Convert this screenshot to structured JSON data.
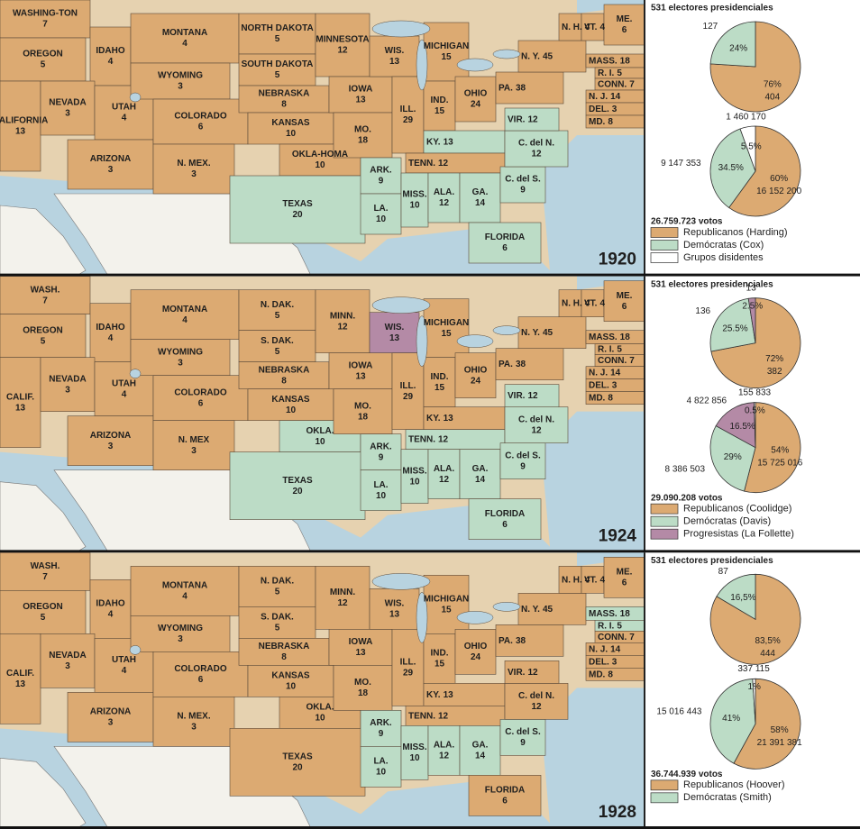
{
  "panels": [
    {
      "year": 1920,
      "electors_title": "531 electores presidenciales",
      "electoral_pie": [
        {
          "percent": 76,
          "percent_label": "76%",
          "count": 404,
          "color": "#dcaa72"
        },
        {
          "percent": 24,
          "percent_label": "24%",
          "count": 127,
          "color": "#bcdcc6"
        }
      ],
      "popular_pie": [
        {
          "percent": 60,
          "percent_label": "60%",
          "count": "16 152 200",
          "color": "#dcaa72"
        },
        {
          "percent": 34.5,
          "percent_label": "34.5%",
          "count": "9 147 353",
          "color": "#bcdcc6"
        },
        {
          "percent": 5.5,
          "percent_label": "5.5%",
          "count": "1 460 170",
          "color": "#ffffff"
        }
      ],
      "total_votes": "26.759.723 votos",
      "legend": [
        {
          "label": "Republicanos (Harding)",
          "color": "#dcaa72"
        },
        {
          "label": "Demócratas (Cox)",
          "color": "#bcdcc6"
        },
        {
          "label": "Grupos disidentes",
          "color": "#ffffff"
        }
      ],
      "states": [
        [
          "WASHING-TON",
          7,
          "#dcaa72"
        ],
        [
          "OREGON",
          5,
          "#dcaa72"
        ],
        [
          "CALIFORNIA",
          13,
          "#dcaa72"
        ],
        [
          "IDAHO",
          4,
          "#dcaa72"
        ],
        [
          "NEVADA",
          3,
          "#dcaa72"
        ],
        [
          "UTAH",
          4,
          "#dcaa72"
        ],
        [
          "ARIZONA",
          3,
          "#dcaa72"
        ],
        [
          "MONTANA",
          4,
          "#dcaa72"
        ],
        [
          "WYOMING",
          3,
          "#dcaa72"
        ],
        [
          "COLORADO",
          6,
          "#dcaa72"
        ],
        [
          "N. MEX.",
          3,
          "#dcaa72"
        ],
        [
          "NORTH DAKOTA",
          5,
          "#dcaa72"
        ],
        [
          "SOUTH DAKOTA",
          5,
          "#dcaa72"
        ],
        [
          "NEBRASKA",
          8,
          "#dcaa72"
        ],
        [
          "KANSAS",
          10,
          "#dcaa72"
        ],
        [
          "OKLA-HOMA",
          10,
          "#dcaa72"
        ],
        [
          "TEXAS",
          20,
          "#bcdcc6"
        ],
        [
          "MINNESOTA",
          12,
          "#dcaa72"
        ],
        [
          "IOWA",
          13,
          "#dcaa72"
        ],
        [
          "MO.",
          18,
          "#dcaa72"
        ],
        [
          "ARK.",
          9,
          "#bcdcc6"
        ],
        [
          "LA.",
          10,
          "#bcdcc6"
        ],
        [
          "WIS.",
          13,
          "#dcaa72"
        ],
        [
          "ILL.",
          29,
          "#dcaa72"
        ],
        [
          "MICHIGAN",
          15,
          "#dcaa72"
        ],
        [
          "IND.",
          15,
          "#dcaa72"
        ],
        [
          "OHIO",
          24,
          "#dcaa72"
        ],
        [
          "KY.",
          13,
          "#bcdcc6"
        ],
        [
          "TENN.",
          12,
          "#dcaa72"
        ],
        [
          "MISS.",
          10,
          "#bcdcc6"
        ],
        [
          "ALA.",
          12,
          "#bcdcc6"
        ],
        [
          "GA.",
          14,
          "#bcdcc6"
        ],
        [
          "FLORIDA",
          6,
          "#bcdcc6"
        ],
        [
          "C. del S.",
          9,
          "#bcdcc6"
        ],
        [
          "C. del N.",
          12,
          "#bcdcc6"
        ],
        [
          "VIR.",
          12,
          "#bcdcc6"
        ],
        [
          "PA.",
          38,
          "#dcaa72"
        ],
        [
          "N. Y.",
          45,
          "#dcaa72"
        ],
        [
          "N. H.",
          4,
          "#dcaa72"
        ],
        [
          "VT.",
          4,
          "#dcaa72"
        ],
        [
          "ME.",
          6,
          "#dcaa72"
        ],
        [
          "MASS.",
          18,
          "#dcaa72"
        ],
        [
          "R. I.",
          5,
          "#dcaa72"
        ],
        [
          "CONN.",
          7,
          "#dcaa72"
        ],
        [
          "N. J.",
          14,
          "#dcaa72"
        ],
        [
          "DEL.",
          3,
          "#dcaa72"
        ],
        [
          "MD.",
          8,
          "#dcaa72"
        ]
      ]
    },
    {
      "year": 1924,
      "electors_title": "531 electores presidenciales",
      "electoral_pie": [
        {
          "percent": 72,
          "percent_label": "72%",
          "count": 382,
          "color": "#dcaa72"
        },
        {
          "percent": 25.5,
          "percent_label": "25.5%",
          "count": 136,
          "color": "#bcdcc6"
        },
        {
          "percent": 2.5,
          "percent_label": "2.5%",
          "count": 13,
          "color": "#b48aa6"
        }
      ],
      "popular_pie": [
        {
          "percent": 54,
          "percent_label": "54%",
          "count": "15 725 016",
          "color": "#dcaa72"
        },
        {
          "percent": 29,
          "percent_label": "29%",
          "count": "8 386 503",
          "color": "#bcdcc6"
        },
        {
          "percent": 16.5,
          "percent_label": "16.5%",
          "count": "4 822 856",
          "color": "#b48aa6"
        },
        {
          "percent": 0.5,
          "percent_label": "0.5%",
          "count": "155 833",
          "color": "#ffffff"
        }
      ],
      "total_votes": "29.090.208 votos",
      "legend": [
        {
          "label": "Republicanos (Coolidge)",
          "color": "#dcaa72"
        },
        {
          "label": "Demócratas (Davis)",
          "color": "#bcdcc6"
        },
        {
          "label": "Progresistas (La Follette)",
          "color": "#b48aa6"
        }
      ],
      "states": [
        [
          "WASH.",
          7,
          "#dcaa72"
        ],
        [
          "OREGON",
          5,
          "#dcaa72"
        ],
        [
          "CALIF.",
          13,
          "#dcaa72"
        ],
        [
          "IDAHO",
          4,
          "#dcaa72"
        ],
        [
          "NEVADA",
          3,
          "#dcaa72"
        ],
        [
          "UTAH",
          4,
          "#dcaa72"
        ],
        [
          "ARIZONA",
          3,
          "#dcaa72"
        ],
        [
          "MONTANA",
          4,
          "#dcaa72"
        ],
        [
          "WYOMING",
          3,
          "#dcaa72"
        ],
        [
          "COLORADO",
          6,
          "#dcaa72"
        ],
        [
          "N. MEX",
          3,
          "#dcaa72"
        ],
        [
          "N. DAK.",
          5,
          "#dcaa72"
        ],
        [
          "S. DAK.",
          5,
          "#dcaa72"
        ],
        [
          "NEBRASKA",
          8,
          "#dcaa72"
        ],
        [
          "KANSAS",
          10,
          "#dcaa72"
        ],
        [
          "OKLA.",
          10,
          "#bcdcc6"
        ],
        [
          "TEXAS",
          20,
          "#bcdcc6"
        ],
        [
          "MINN.",
          12,
          "#dcaa72"
        ],
        [
          "IOWA",
          13,
          "#dcaa72"
        ],
        [
          "MO.",
          18,
          "#dcaa72"
        ],
        [
          "ARK.",
          9,
          "#bcdcc6"
        ],
        [
          "LA.",
          10,
          "#bcdcc6"
        ],
        [
          "WIS.",
          13,
          "#b48aa6"
        ],
        [
          "ILL.",
          29,
          "#dcaa72"
        ],
        [
          "MICHIGAN",
          15,
          "#dcaa72"
        ],
        [
          "IND.",
          15,
          "#dcaa72"
        ],
        [
          "OHIO",
          24,
          "#dcaa72"
        ],
        [
          "KY.",
          13,
          "#dcaa72"
        ],
        [
          "TENN.",
          12,
          "#bcdcc6"
        ],
        [
          "MISS.",
          10,
          "#bcdcc6"
        ],
        [
          "ALA.",
          12,
          "#bcdcc6"
        ],
        [
          "GA.",
          14,
          "#bcdcc6"
        ],
        [
          "FLORIDA",
          6,
          "#bcdcc6"
        ],
        [
          "C. del S.",
          9,
          "#bcdcc6"
        ],
        [
          "C. del N.",
          12,
          "#bcdcc6"
        ],
        [
          "VIR.",
          12,
          "#bcdcc6"
        ],
        [
          "PA.",
          38,
          "#dcaa72"
        ],
        [
          "N. Y.",
          45,
          "#dcaa72"
        ],
        [
          "N. H.",
          4,
          "#dcaa72"
        ],
        [
          "VT.",
          4,
          "#dcaa72"
        ],
        [
          "ME.",
          6,
          "#dcaa72"
        ],
        [
          "MASS.",
          18,
          "#dcaa72"
        ],
        [
          "R. I.",
          5,
          "#dcaa72"
        ],
        [
          "CONN.",
          7,
          "#dcaa72"
        ],
        [
          "N. J.",
          14,
          "#dcaa72"
        ],
        [
          "DEL.",
          3,
          "#dcaa72"
        ],
        [
          "MD.",
          8,
          "#dcaa72"
        ]
      ]
    },
    {
      "year": 1928,
      "electors_title": "531 electores presidenciales",
      "electoral_pie": [
        {
          "percent": 83.5,
          "percent_label": "83,5%",
          "count": 444,
          "color": "#dcaa72"
        },
        {
          "percent": 16.5,
          "percent_label": "16,5%",
          "count": 87,
          "color": "#bcdcc6"
        }
      ],
      "popular_pie": [
        {
          "percent": 58,
          "percent_label": "58%",
          "count": "21 391 381",
          "color": "#dcaa72"
        },
        {
          "percent": 41,
          "percent_label": "41%",
          "count": "15 016 443",
          "color": "#bcdcc6"
        },
        {
          "percent": 1,
          "percent_label": "1%",
          "count": "337 115",
          "color": "#ffffff"
        }
      ],
      "total_votes": "36.744.939 votos",
      "legend": [
        {
          "label": "Republicanos (Hoover)",
          "color": "#dcaa72"
        },
        {
          "label": "Demócratas (Smith)",
          "color": "#bcdcc6"
        }
      ],
      "states": [
        [
          "WASH.",
          7,
          "#dcaa72"
        ],
        [
          "OREGON",
          5,
          "#dcaa72"
        ],
        [
          "CALIF.",
          13,
          "#dcaa72"
        ],
        [
          "IDAHO",
          4,
          "#dcaa72"
        ],
        [
          "NEVADA",
          3,
          "#dcaa72"
        ],
        [
          "UTAH",
          4,
          "#dcaa72"
        ],
        [
          "ARIZONA",
          3,
          "#dcaa72"
        ],
        [
          "MONTANA",
          4,
          "#dcaa72"
        ],
        [
          "WYOMING",
          3,
          "#dcaa72"
        ],
        [
          "COLORADO",
          6,
          "#dcaa72"
        ],
        [
          "N. MEX.",
          3,
          "#dcaa72"
        ],
        [
          "N. DAK.",
          5,
          "#dcaa72"
        ],
        [
          "S. DAK.",
          5,
          "#dcaa72"
        ],
        [
          "NEBRASKA",
          8,
          "#dcaa72"
        ],
        [
          "KANSAS",
          10,
          "#dcaa72"
        ],
        [
          "OKLA.",
          10,
          "#dcaa72"
        ],
        [
          "TEXAS",
          20,
          "#dcaa72"
        ],
        [
          "MINN.",
          12,
          "#dcaa72"
        ],
        [
          "IOWA",
          13,
          "#dcaa72"
        ],
        [
          "MO.",
          18,
          "#dcaa72"
        ],
        [
          "ARK.",
          9,
          "#bcdcc6"
        ],
        [
          "LA.",
          10,
          "#bcdcc6"
        ],
        [
          "WIS.",
          13,
          "#dcaa72"
        ],
        [
          "ILL.",
          29,
          "#dcaa72"
        ],
        [
          "MICHIGAN",
          15,
          "#dcaa72"
        ],
        [
          "IND.",
          15,
          "#dcaa72"
        ],
        [
          "OHIO",
          24,
          "#dcaa72"
        ],
        [
          "KY.",
          13,
          "#dcaa72"
        ],
        [
          "TENN.",
          12,
          "#dcaa72"
        ],
        [
          "MISS.",
          10,
          "#bcdcc6"
        ],
        [
          "ALA.",
          12,
          "#bcdcc6"
        ],
        [
          "GA.",
          14,
          "#bcdcc6"
        ],
        [
          "FLORIDA",
          6,
          "#dcaa72"
        ],
        [
          "C. del S.",
          9,
          "#bcdcc6"
        ],
        [
          "C. del N.",
          12,
          "#dcaa72"
        ],
        [
          "VIR.",
          12,
          "#dcaa72"
        ],
        [
          "PA.",
          38,
          "#dcaa72"
        ],
        [
          "N. Y.",
          45,
          "#dcaa72"
        ],
        [
          "N. H.",
          4,
          "#dcaa72"
        ],
        [
          "VT.",
          4,
          "#dcaa72"
        ],
        [
          "ME.",
          6,
          "#dcaa72"
        ],
        [
          "MASS.",
          18,
          "#bcdcc6"
        ],
        [
          "R. I.",
          5,
          "#bcdcc6"
        ],
        [
          "CONN.",
          7,
          "#dcaa72"
        ],
        [
          "N. J.",
          14,
          "#dcaa72"
        ],
        [
          "DEL.",
          3,
          "#dcaa72"
        ],
        [
          "MD.",
          8,
          "#dcaa72"
        ]
      ]
    }
  ]
}
